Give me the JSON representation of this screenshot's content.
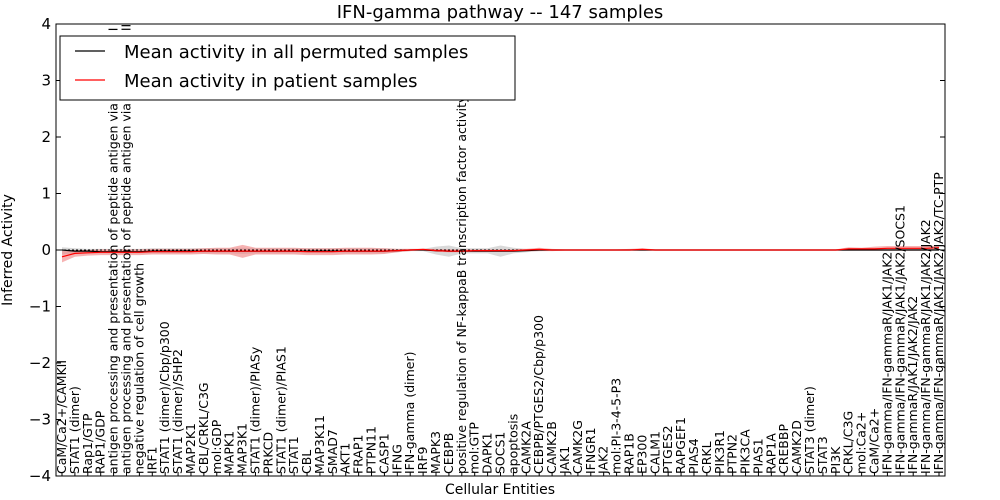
{
  "chart_data": {
    "type": "line",
    "title": "IFN-gamma pathway -- 147 samples",
    "xlabel": "Cellular Entities",
    "ylabel": "Inferred Activity",
    "ylim": [
      -4,
      4
    ],
    "yticks": [
      "−4",
      "−3",
      "−2",
      "−1",
      "0",
      "1",
      "2",
      "3",
      "4"
    ],
    "grid": false,
    "legend_position": "top-left",
    "baseline_y": 0,
    "categories": [
      "CaM/Ca2+/CAMKII",
      "STAT1 (dimer)",
      "Rap1/GTP",
      "RAP1/GDP",
      "antigen processing and presentation of peptide antigen via MHC class I",
      "antigen processing and presentation of peptide antigen via MHC class II",
      "negative regulation of cell growth",
      "IRF1",
      "STAT1 (dimer)/Cbp/p300",
      "STAT1 (dimer)/SHP2",
      "MAP2K1",
      "CBL/CRKL/C3G",
      "mol:GDP",
      "MAPK1",
      "MAP3K1",
      "STAT1 (dimer)/PIASy",
      "PRKCD",
      "STAT1 (dimer)/PIAS1",
      "STAT1",
      "CBL",
      "MAP3K11",
      "SMAD7",
      "AKT1",
      "FRAP1",
      "PTPN11",
      "CASP1",
      "IFNG",
      "IFN-gamma (dimer)",
      "IRF9",
      "MAPK3",
      "CEBPB",
      "positive regulation of NF-kappaB transcription factor activity",
      "mol:GTP",
      "DAPK1",
      "SOCS1",
      "apoptosis",
      "CAMK2A",
      "CEBPB/PTGES2/Cbp/p300",
      "CAMK2B",
      "JAK1",
      "CAMK2G",
      "IFNGR1",
      "JAK2",
      "mol:PI-3-4-5-P3",
      "RAP1B",
      "EP300",
      "CALM1",
      "PTGES2",
      "RAPGEF1",
      "PIAS4",
      "CRKL",
      "PIK3R1",
      "PTPN2",
      "PIK3CA",
      "PIAS1",
      "RAP1A",
      "CREBBP",
      "CAMK2D",
      "STAT3 (dimer)",
      "STAT3",
      "PI3K",
      "CRKL/C3G",
      "mol:Ca2+",
      "CaM/Ca2+",
      "IFN-gamma/IFN-gammaR/JAK1/JAK2",
      "IFN-gamma/IFN-gammaR/JAK1/JAK2/SOCS1",
      "IFN-gammaR/JAK1/JAK2/JAK2",
      "IFN-gamma/IFN-gammaR/JAK1/JAK2/JAK2",
      "IFN-gamma/IFN-gammaR/JAK1/JAK2/JAK2/TC-PTP"
    ],
    "series": [
      {
        "name": "Mean activity in all permuted samples",
        "color": "#000000",
        "band_color": "#b3b3b3",
        "values": [
          0,
          -0.02,
          -0.02,
          -0.03,
          -0.03,
          -0.03,
          -0.03,
          -0.02,
          -0.02,
          -0.02,
          -0.02,
          -0.02,
          -0.02,
          -0.02,
          -0.02,
          -0.02,
          -0.02,
          -0.02,
          -0.02,
          -0.02,
          -0.02,
          -0.02,
          -0.02,
          -0.02,
          -0.02,
          -0.02,
          -0.01,
          0,
          0,
          -0.01,
          -0.02,
          -0.02,
          -0.02,
          -0.02,
          -0.02,
          -0.02,
          -0.01,
          0,
          0,
          0,
          0,
          0,
          0,
          0,
          0,
          0,
          0,
          0,
          0,
          0,
          0,
          0,
          0,
          0,
          0,
          0,
          0,
          0,
          0,
          0,
          0,
          0,
          0,
          0,
          0,
          0,
          0,
          0,
          0
        ],
        "band_upper": [
          0.05,
          0.03,
          0.02,
          0.02,
          0.02,
          0.02,
          0.02,
          0.03,
          0.03,
          0.03,
          0.03,
          0.03,
          0.03,
          0.03,
          0.04,
          0.03,
          0.03,
          0.03,
          0.03,
          0.03,
          0.03,
          0.03,
          0.03,
          0.03,
          0.03,
          0.03,
          0.02,
          0.02,
          0.02,
          0.06,
          0.08,
          0.03,
          0.03,
          0.03,
          0.08,
          0.04,
          0.02,
          0.02,
          0.01,
          0.01,
          0.01,
          0.01,
          0.01,
          0.01,
          0.01,
          0.01,
          0.01,
          0.01,
          0.01,
          0.01,
          0.01,
          0.01,
          0.01,
          0.01,
          0.01,
          0.01,
          0.01,
          0.01,
          0.01,
          0.01,
          0.01,
          0.01,
          0.01,
          0.01,
          0.01,
          0.01,
          0.01,
          0.01,
          0.01
        ],
        "band_lower": [
          -0.08,
          -0.06,
          -0.06,
          -0.06,
          -0.06,
          -0.06,
          -0.06,
          -0.06,
          -0.06,
          -0.06,
          -0.06,
          -0.06,
          -0.06,
          -0.06,
          -0.07,
          -0.06,
          -0.06,
          -0.06,
          -0.06,
          -0.06,
          -0.06,
          -0.06,
          -0.06,
          -0.06,
          -0.06,
          -0.06,
          -0.04,
          -0.02,
          -0.02,
          -0.08,
          -0.12,
          -0.06,
          -0.06,
          -0.06,
          -0.12,
          -0.06,
          -0.04,
          -0.02,
          -0.01,
          -0.01,
          -0.01,
          -0.01,
          -0.01,
          -0.01,
          -0.01,
          -0.01,
          -0.01,
          -0.01,
          -0.01,
          -0.01,
          -0.01,
          -0.01,
          -0.01,
          -0.01,
          -0.01,
          -0.01,
          -0.01,
          -0.01,
          -0.01,
          -0.01,
          -0.01,
          -0.01,
          -0.01,
          -0.01,
          -0.01,
          -0.01,
          -0.01,
          -0.01,
          -0.01
        ]
      },
      {
        "name": "Mean activity in patient samples",
        "color": "#ff0000",
        "band_color": "#f08080",
        "values": [
          -0.12,
          -0.06,
          -0.05,
          -0.04,
          -0.04,
          -0.04,
          -0.04,
          -0.03,
          -0.03,
          -0.03,
          -0.03,
          -0.02,
          -0.02,
          -0.02,
          -0.02,
          -0.02,
          -0.02,
          -0.02,
          -0.02,
          -0.03,
          -0.03,
          -0.03,
          -0.02,
          -0.02,
          -0.02,
          -0.02,
          -0.01,
          0,
          0.01,
          -0.01,
          -0.02,
          -0.02,
          -0.01,
          -0.01,
          -0.01,
          -0.01,
          0,
          0.01,
          0,
          0,
          0,
          0,
          0,
          0,
          0,
          0.01,
          0,
          0,
          0,
          0,
          0,
          0,
          0,
          0,
          0,
          0,
          0,
          0,
          0,
          0,
          0,
          0.02,
          0.02,
          0.02,
          0.03,
          0.03,
          0.03,
          0.03,
          0.04
        ],
        "band_upper": [
          -0.02,
          0.0,
          0.0,
          0.01,
          0.01,
          0.01,
          0.01,
          0.02,
          0.02,
          0.02,
          0.02,
          0.03,
          0.04,
          0.04,
          0.09,
          0.04,
          0.04,
          0.04,
          0.04,
          0.03,
          0.03,
          0.03,
          0.04,
          0.04,
          0.04,
          0.03,
          0.02,
          0.02,
          0.02,
          0.02,
          0.01,
          0.01,
          0.01,
          0.01,
          0.01,
          0.01,
          0.02,
          0.04,
          0.02,
          0.01,
          0.01,
          0.01,
          0.01,
          0.01,
          0.02,
          0.03,
          0.01,
          0.01,
          0.01,
          0.01,
          0.01,
          0.01,
          0.01,
          0.01,
          0.01,
          0.01,
          0.01,
          0.01,
          0.01,
          0.01,
          0.01,
          0.05,
          0.04,
          0.06,
          0.07,
          0.07,
          0.07,
          0.07,
          0.08
        ],
        "band_lower": [
          -0.22,
          -0.12,
          -0.1,
          -0.09,
          -0.09,
          -0.09,
          -0.09,
          -0.08,
          -0.08,
          -0.08,
          -0.08,
          -0.07,
          -0.08,
          -0.08,
          -0.14,
          -0.08,
          -0.08,
          -0.08,
          -0.08,
          -0.09,
          -0.09,
          -0.09,
          -0.08,
          -0.08,
          -0.08,
          -0.07,
          -0.04,
          -0.02,
          0.0,
          -0.03,
          -0.04,
          -0.04,
          -0.03,
          -0.03,
          -0.03,
          -0.03,
          -0.02,
          -0.02,
          -0.02,
          -0.01,
          -0.01,
          -0.01,
          -0.01,
          -0.01,
          -0.01,
          -0.01,
          -0.01,
          -0.01,
          -0.01,
          -0.01,
          -0.01,
          -0.01,
          -0.01,
          -0.01,
          -0.01,
          -0.01,
          -0.01,
          -0.01,
          -0.01,
          -0.01,
          -0.01,
          -0.01,
          -0.01,
          -0.01,
          -0.01,
          -0.01,
          -0.01,
          -0.01,
          0.0
        ]
      }
    ]
  }
}
